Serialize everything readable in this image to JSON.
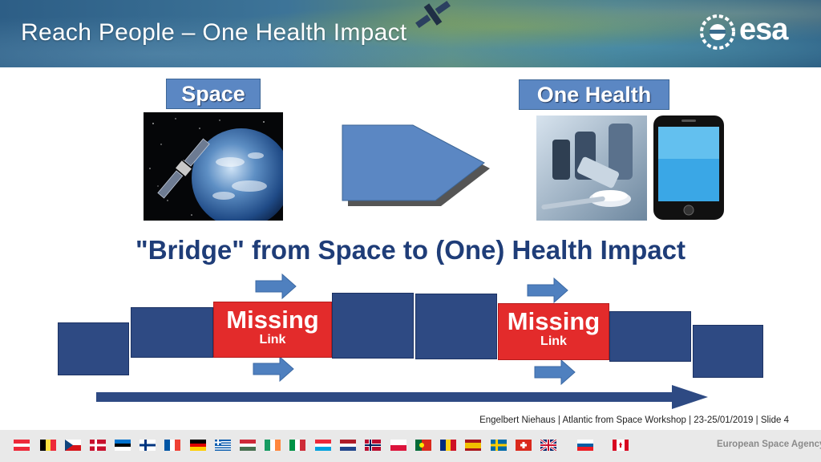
{
  "slide": {
    "title": "Reach People – One Health Impact",
    "logo_text": "esa",
    "space_label": "Space",
    "health_label": "One Health",
    "bridge_title": "\"Bridge\" from Space to (One) Health Impact",
    "missing_links": [
      {
        "big": "Missing",
        "small": "Link"
      },
      {
        "big": "Missing",
        "small": "Link"
      }
    ]
  },
  "footer": {
    "credit": "Engelbert Niehaus | Atlantic from Space Workshop | 23-25/01/2019 | Slide  4",
    "agency": "European Space Agency"
  },
  "icons": {
    "satellite": "satellite-earth-image",
    "pharma": "medicine-bottles-image",
    "phone": "smartphone-icon",
    "arrow": "right-arrow-icon"
  },
  "colors": {
    "label_blue": "#5b87c3",
    "box_navy": "#2e4a83",
    "missing_red": "#e32b2b",
    "title_navy": "#1f3d78"
  }
}
